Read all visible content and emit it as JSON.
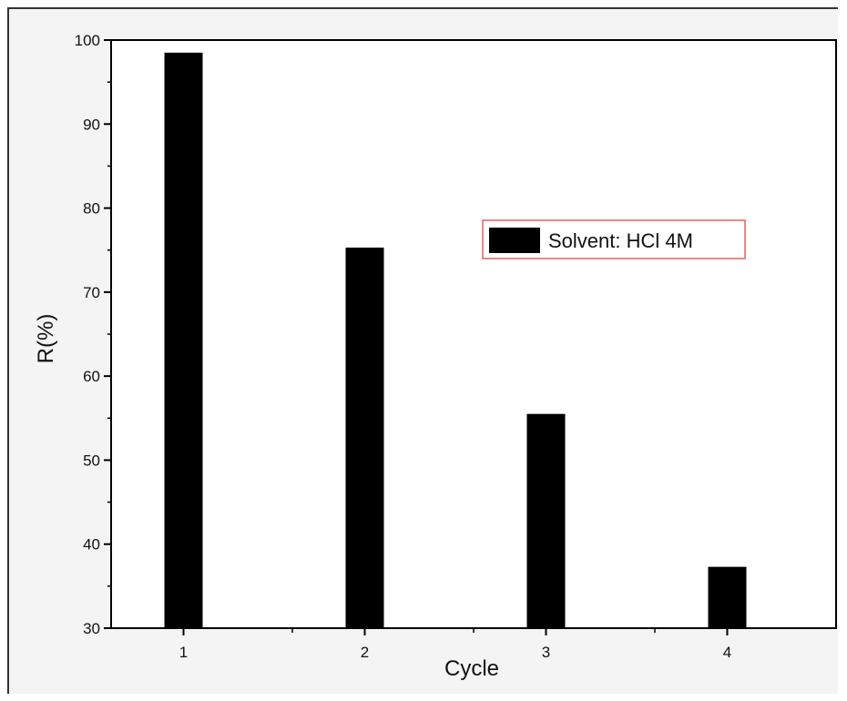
{
  "chart_data": {
    "type": "bar",
    "categories": [
      "1",
      "2",
      "3",
      "4"
    ],
    "series": [
      {
        "name": "Solvent: HCl 4M",
        "values": [
          98.5,
          75.3,
          55.5,
          37.3
        ]
      }
    ],
    "xlabel": "Cycle",
    "ylabel": "R(%)",
    "ylim": [
      30,
      100
    ],
    "yticks": [
      30,
      40,
      50,
      60,
      70,
      80,
      90,
      100
    ],
    "grid": false,
    "legend_position": "right",
    "colors": {
      "bar": "#000000",
      "legend_border": "#e06060",
      "axis": "#000000"
    }
  }
}
